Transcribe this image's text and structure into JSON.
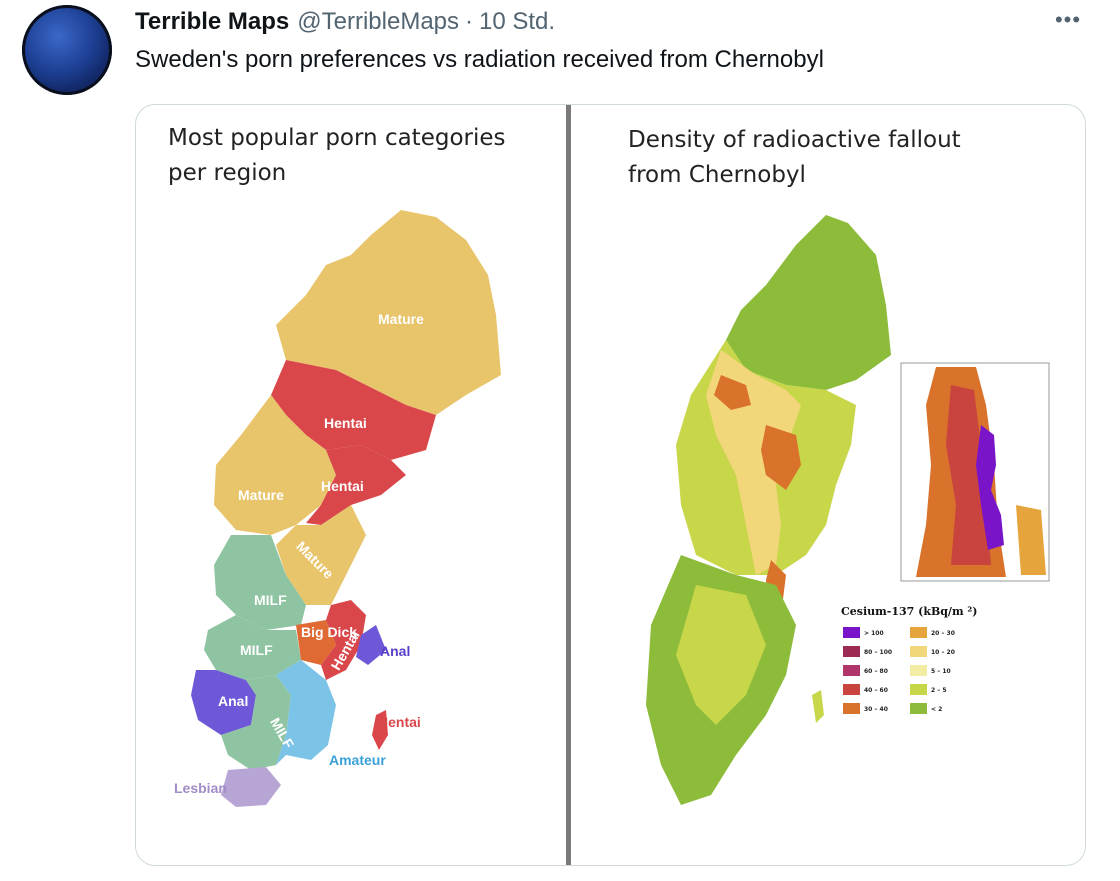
{
  "tweet": {
    "name": "Terrible Maps",
    "handle": "@TerribleMaps",
    "separator": "·",
    "time": "10 Std.",
    "more_icon": "more-horizontal-icon",
    "text": "Sweden's porn preferences vs radiation received from Chernobyl"
  },
  "image": {
    "left_panel": {
      "title_line1": "Most popular porn categories",
      "title_line2": "per region",
      "region_labels": [
        "Mature",
        "Hentai",
        "Mature",
        "Hentai",
        "Mature",
        "MILF",
        "MILF",
        "Big Dick",
        "Hentai",
        "Anal",
        "Anal",
        "MILF",
        "Amateur",
        "Hentai",
        "Lesbian"
      ]
    },
    "right_panel": {
      "title_line1": "Density of radioactive fallout",
      "title_line2": "from Chernobyl",
      "legend_title": "Cesium-137 (kBq/m  ²)",
      "legend": [
        {
          "label": "> 100",
          "color": "#7a14c8"
        },
        {
          "label": "80 – 100",
          "color": "#9b2a55"
        },
        {
          "label": "60 – 80",
          "color": "#b0356a"
        },
        {
          "label": "40 – 60",
          "color": "#c9443e"
        },
        {
          "label": "30 – 40",
          "color": "#d9722a"
        },
        {
          "label": "20 – 30",
          "color": "#e6a53c"
        },
        {
          "label": "10 – 20",
          "color": "#f2d77a"
        },
        {
          "label": "5 – 10",
          "color": "#f3eca3"
        },
        {
          "label": "2 – 5",
          "color": "#c8d64a"
        },
        {
          "label": "< 2",
          "color": "#8dbb3a"
        }
      ]
    }
  }
}
